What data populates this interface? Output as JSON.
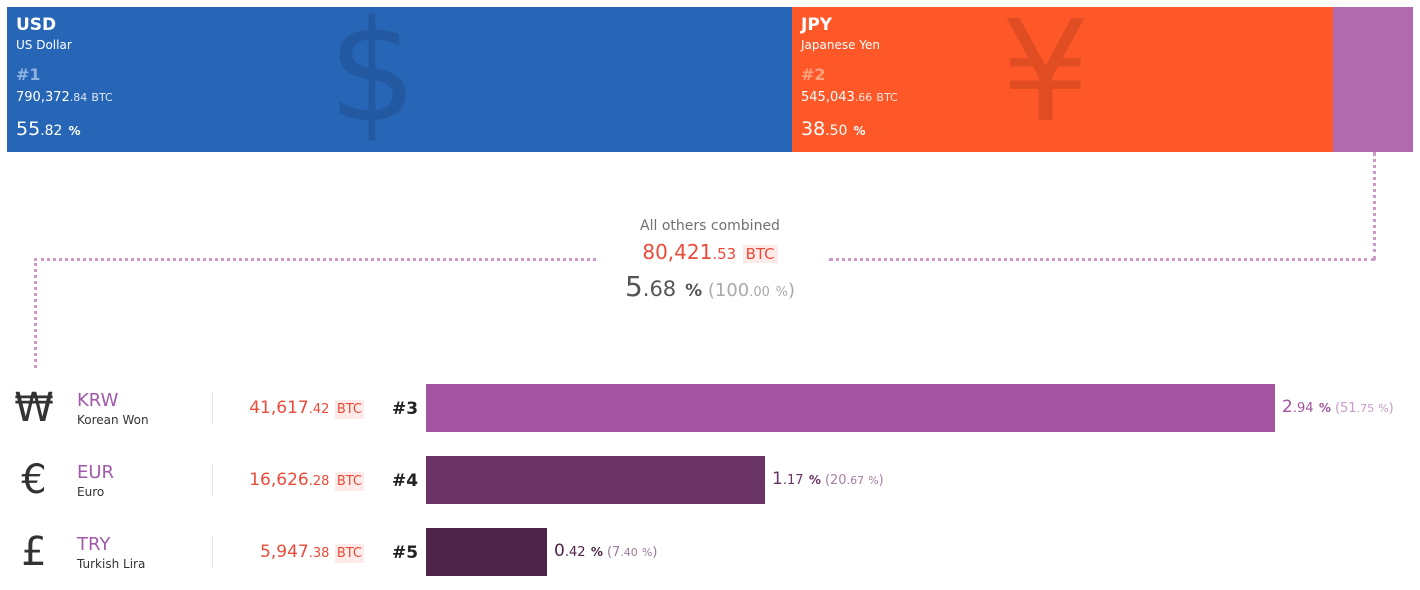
{
  "chart_data": {
    "type": "bar",
    "title": "",
    "unit": "BTC",
    "top_currencies": [
      {
        "code": "USD",
        "name": "US Dollar",
        "rank": "#1",
        "btc_int": "790,372",
        "btc_dec": ".84",
        "btc_unit": "BTC",
        "pct_int": "55",
        "pct_dec": ".82",
        "pct_unit": "%",
        "share": 55.82,
        "icon": "$",
        "color": "#2766b7",
        "rank_color": "#8fb3e3",
        "icon_color": "#2359a0"
      },
      {
        "code": "JPY",
        "name": "Japanese Yen",
        "rank": "#2",
        "btc_int": "545,043",
        "btc_dec": ".66",
        "btc_unit": "BTC",
        "pct_int": "38",
        "pct_dec": ".50",
        "pct_unit": "%",
        "share": 38.5,
        "icon": "¥",
        "color": "#fe5728",
        "rank_color": "#ffa27f",
        "icon_color": "#e14d22"
      }
    ],
    "others_color": "#b06aae",
    "others": {
      "label": "All others combined",
      "btc_int": "80,421",
      "btc_dec": ".53",
      "btc_unit": "BTC",
      "pct_int": "5",
      "pct_dec": ".68",
      "pct_unit": "%",
      "rel_int": "100",
      "rel_dec": ".00",
      "rel_unit": "%",
      "share": 5.68
    },
    "rows": [
      {
        "icon": "₩",
        "code": "KRW",
        "name": "Korean Won",
        "btc_int": "41,617",
        "btc_dec": ".42",
        "btc_unit": "BTC",
        "rank": "#3",
        "pct_int": "2",
        "pct_dec": ".94",
        "pct_unit": "%",
        "rel_int": "51",
        "rel_dec": ".75",
        "rel_unit": "%",
        "rel_value": 51.75,
        "color": "#a355a2",
        "text_color": "#a355a2",
        "rel_color": "#c99bc9"
      },
      {
        "icon": "€",
        "code": "EUR",
        "name": "Euro",
        "btc_int": "16,626",
        "btc_dec": ".28",
        "btc_unit": "BTC",
        "rank": "#4",
        "pct_int": "1",
        "pct_dec": ".17",
        "pct_unit": "%",
        "rel_int": "20",
        "rel_dec": ".67",
        "rel_unit": "%",
        "rel_value": 20.67,
        "color": "#693465",
        "text_color": "#693465",
        "rel_color": "#a67fa3"
      },
      {
        "icon": "£",
        "code": "TRY",
        "name": "Turkish Lira",
        "btc_int": "5,947",
        "btc_dec": ".38",
        "btc_unit": "BTC",
        "rank": "#5",
        "pct_int": "0",
        "pct_dec": ".42",
        "pct_unit": "%",
        "rel_int": "7",
        "rel_dec": ".40",
        "rel_unit": "%",
        "rel_value": 7.4,
        "color": "#4e2449",
        "text_color": "#4e2449",
        "rel_color": "#9b7a98"
      }
    ]
  }
}
